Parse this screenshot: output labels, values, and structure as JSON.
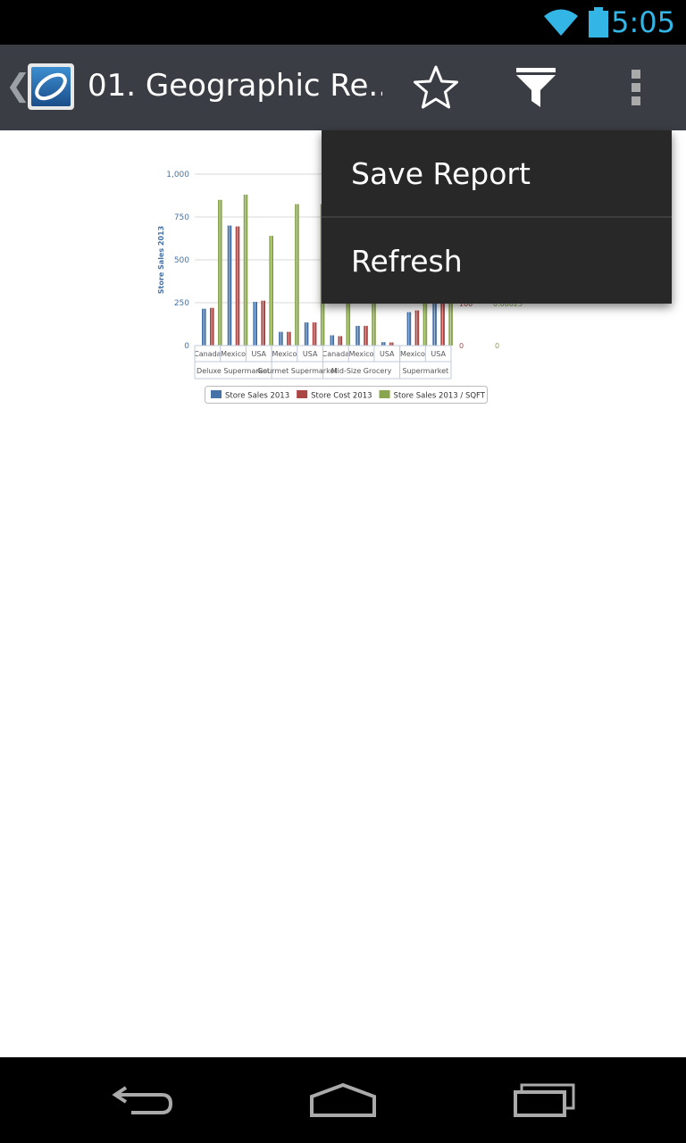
{
  "status_bar": {
    "time": "5:05"
  },
  "action_bar": {
    "title": "01. Geographic Re..."
  },
  "menu": {
    "items": [
      {
        "label": "Save Report"
      },
      {
        "label": "Refresh"
      }
    ]
  },
  "chart_data": {
    "type": "bar",
    "ylabel": "Store Sales 2013",
    "ylim": [
      0,
      1000
    ],
    "yticks": [
      "0",
      "250",
      "500",
      "750",
      "1,000"
    ],
    "categories": [
      "Canada",
      "Mexico",
      "USA",
      "Mexico",
      "USA",
      "Canada",
      "Mexico",
      "USA",
      "Mexico",
      "USA"
    ],
    "groups": [
      {
        "label": "Deluxe Supermarket",
        "span": 3
      },
      {
        "label": "Gourmet Supermarket",
        "span": 2
      },
      {
        "label": "Mid-Size Grocery",
        "span": 3
      },
      {
        "label": "Supermarket",
        "span": 2
      }
    ],
    "series": [
      {
        "name": "Store Sales 2013",
        "color": "#4572a7",
        "values": [
          215,
          700,
          255,
          80,
          135,
          60,
          115,
          20,
          195,
          280
        ]
      },
      {
        "name": "Store Cost 2013",
        "color": "#aa4643",
        "values": [
          220,
          695,
          262,
          80,
          135,
          55,
          115,
          18,
          205,
          285
        ]
      },
      {
        "name": "Store Sales 2013 / SQFT",
        "color": "#89a54e",
        "values": [
          850,
          880,
          640,
          825,
          825,
          310,
          330,
          0,
          360,
          440
        ]
      }
    ],
    "secondary_axis_labels": [
      "0",
      "100",
      "0",
      "0.00025"
    ]
  }
}
